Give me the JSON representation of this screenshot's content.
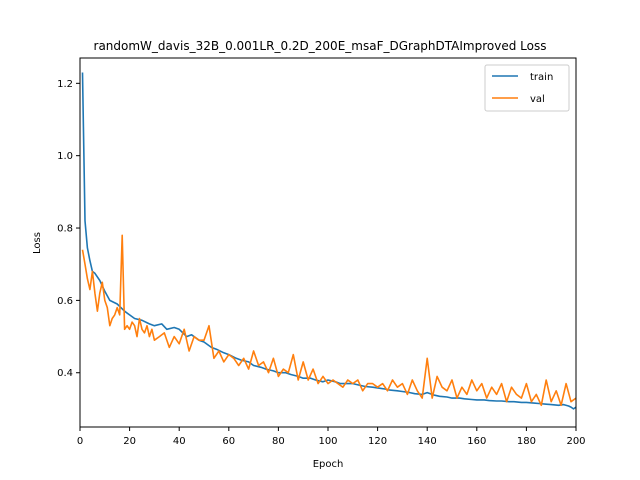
{
  "chart_data": {
    "type": "line",
    "title": "randomW_davis_32B_0.001LR_0.2D_200E_msaF_DGraphDTAImproved Loss",
    "xlabel": "Epoch",
    "ylabel": "Loss",
    "xlim": [
      0,
      200
    ],
    "ylim": [
      0.25,
      1.27
    ],
    "xticks": [
      0,
      20,
      40,
      60,
      80,
      100,
      120,
      140,
      160,
      180,
      200
    ],
    "yticks": [
      0.4,
      0.6,
      0.8,
      1.0,
      1.2
    ],
    "xtick_labels": [
      "0",
      "20",
      "40",
      "60",
      "80",
      "100",
      "120",
      "140",
      "160",
      "180",
      "200"
    ],
    "ytick_labels": [
      "0.4",
      "0.6",
      "0.8",
      "1.0",
      "1.2"
    ],
    "grid": false,
    "legend_position": "top-right",
    "series": [
      {
        "name": "train",
        "color": "#1f77b4",
        "x": [
          1,
          2,
          3,
          4,
          5,
          6,
          8,
          10,
          12,
          15,
          18,
          20,
          22,
          25,
          28,
          30,
          33,
          35,
          38,
          40,
          43,
          45,
          48,
          50,
          53,
          55,
          58,
          60,
          63,
          65,
          68,
          70,
          73,
          75,
          78,
          80,
          83,
          85,
          88,
          90,
          93,
          95,
          98,
          100,
          103,
          105,
          108,
          110,
          113,
          115,
          118,
          120,
          123,
          125,
          128,
          130,
          133,
          135,
          138,
          140,
          143,
          145,
          148,
          150,
          153,
          155,
          158,
          160,
          163,
          165,
          168,
          170,
          173,
          175,
          178,
          180,
          183,
          185,
          188,
          190,
          193,
          195,
          197,
          198,
          199,
          200
        ],
        "y": [
          1.23,
          0.82,
          0.745,
          0.71,
          0.68,
          0.675,
          0.655,
          0.625,
          0.6,
          0.59,
          0.57,
          0.56,
          0.55,
          0.545,
          0.535,
          0.53,
          0.535,
          0.52,
          0.525,
          0.52,
          0.5,
          0.505,
          0.49,
          0.485,
          0.47,
          0.465,
          0.455,
          0.45,
          0.44,
          0.435,
          0.43,
          0.42,
          0.415,
          0.41,
          0.405,
          0.4,
          0.4,
          0.395,
          0.39,
          0.385,
          0.385,
          0.38,
          0.375,
          0.38,
          0.375,
          0.37,
          0.37,
          0.37,
          0.365,
          0.362,
          0.36,
          0.358,
          0.355,
          0.352,
          0.35,
          0.348,
          0.345,
          0.342,
          0.34,
          0.345,
          0.338,
          0.335,
          0.333,
          0.33,
          0.33,
          0.328,
          0.326,
          0.325,
          0.325,
          0.323,
          0.322,
          0.322,
          0.32,
          0.32,
          0.318,
          0.318,
          0.316,
          0.315,
          0.313,
          0.312,
          0.31,
          0.312,
          0.308,
          0.305,
          0.3,
          0.305
        ]
      },
      {
        "name": "val",
        "color": "#ff7f0e",
        "x": [
          1,
          2,
          3,
          4,
          5,
          6,
          7,
          8,
          9,
          10,
          11,
          12,
          13,
          14,
          15,
          16,
          17,
          18,
          19,
          20,
          21,
          22,
          23,
          24,
          25,
          26,
          27,
          28,
          29,
          30,
          32,
          34,
          36,
          38,
          40,
          42,
          44,
          46,
          48,
          50,
          52,
          54,
          56,
          58,
          60,
          62,
          64,
          66,
          68,
          70,
          72,
          74,
          76,
          78,
          80,
          82,
          84,
          86,
          88,
          90,
          92,
          94,
          96,
          98,
          100,
          102,
          104,
          106,
          108,
          110,
          112,
          114,
          116,
          118,
          120,
          122,
          124,
          126,
          128,
          130,
          132,
          134,
          136,
          138,
          140,
          142,
          144,
          146,
          148,
          150,
          152,
          154,
          156,
          158,
          160,
          162,
          164,
          166,
          168,
          170,
          172,
          174,
          176,
          178,
          180,
          182,
          184,
          186,
          188,
          190,
          192,
          194,
          196,
          198,
          200
        ],
        "y": [
          0.74,
          0.7,
          0.66,
          0.63,
          0.68,
          0.62,
          0.57,
          0.62,
          0.65,
          0.6,
          0.58,
          0.53,
          0.55,
          0.56,
          0.58,
          0.56,
          0.78,
          0.52,
          0.53,
          0.52,
          0.54,
          0.53,
          0.5,
          0.55,
          0.52,
          0.51,
          0.53,
          0.5,
          0.52,
          0.49,
          0.5,
          0.51,
          0.47,
          0.5,
          0.48,
          0.52,
          0.46,
          0.5,
          0.49,
          0.49,
          0.53,
          0.44,
          0.46,
          0.43,
          0.45,
          0.44,
          0.42,
          0.44,
          0.41,
          0.46,
          0.42,
          0.43,
          0.4,
          0.44,
          0.39,
          0.41,
          0.4,
          0.45,
          0.38,
          0.43,
          0.38,
          0.41,
          0.37,
          0.39,
          0.37,
          0.38,
          0.37,
          0.36,
          0.38,
          0.37,
          0.38,
          0.35,
          0.37,
          0.37,
          0.36,
          0.37,
          0.35,
          0.38,
          0.36,
          0.37,
          0.34,
          0.38,
          0.35,
          0.33,
          0.44,
          0.33,
          0.39,
          0.36,
          0.35,
          0.38,
          0.33,
          0.36,
          0.34,
          0.38,
          0.35,
          0.37,
          0.33,
          0.36,
          0.34,
          0.37,
          0.32,
          0.36,
          0.34,
          0.33,
          0.37,
          0.32,
          0.34,
          0.31,
          0.38,
          0.32,
          0.35,
          0.31,
          0.37,
          0.32,
          0.33
        ]
      }
    ]
  }
}
